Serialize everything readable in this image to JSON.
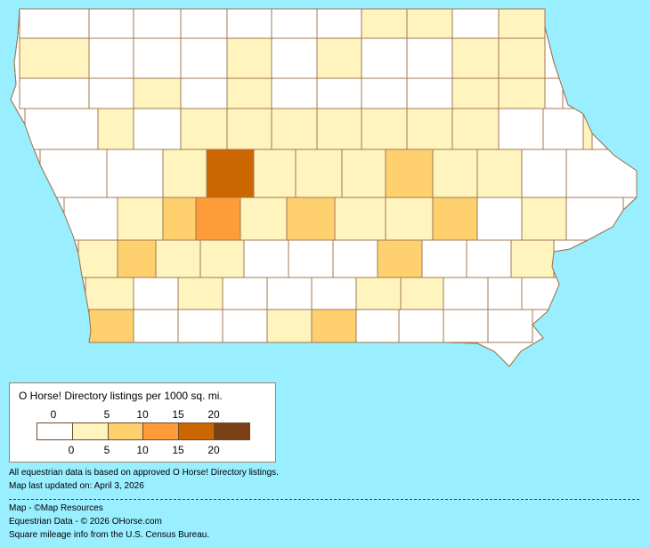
{
  "legend": {
    "title": "O Horse! Directory listings per 1000 sq. mi.",
    "top_ticks": [
      "0",
      "5",
      "10",
      "15",
      "20"
    ],
    "bottom_ticks": [
      "0",
      "5",
      "10",
      "15",
      "20"
    ],
    "colors": [
      "#FFFFFF",
      "#FFF4BE",
      "#FFD16E",
      "#FF9C3A",
      "#CC6600",
      "#7A4016"
    ]
  },
  "notes": {
    "basis": "All equestrian data is based on approved O Horse! Directory listings.",
    "updated": "Map last updated on: April 3, 2026"
  },
  "credits": {
    "map": "Map - ©Map Resources",
    "data": "Equestrian Data - © 2026 OHorse.com",
    "census": "Square mileage info from the U.S. Census Bureau."
  },
  "map": {
    "background": "#99EEFF",
    "border_color": "#A07850",
    "counties": [
      {
        "level": 0
      },
      {
        "level": 0
      },
      {
        "level": 0
      },
      {
        "level": 0
      },
      {
        "level": 0
      },
      {
        "level": 0
      },
      {
        "level": 0
      },
      {
        "level": 1
      },
      {
        "level": 1
      },
      {
        "level": 0
      },
      {
        "level": 1
      },
      {
        "level": 1
      },
      {
        "level": 0
      },
      {
        "level": 0
      },
      {
        "level": 0
      },
      {
        "level": 1
      },
      {
        "level": 0
      },
      {
        "level": 1
      },
      {
        "level": 0
      },
      {
        "level": 0
      },
      {
        "level": 1
      },
      {
        "level": 1
      },
      {
        "level": 0
      },
      {
        "level": 0
      },
      {
        "level": 1
      },
      {
        "level": 0
      },
      {
        "level": 1
      },
      {
        "level": 0
      },
      {
        "level": 0
      },
      {
        "level": 0
      },
      {
        "level": 0
      },
      {
        "level": 1
      },
      {
        "level": 1
      },
      {
        "level": 0
      },
      {
        "level": 0
      },
      {
        "level": 1
      },
      {
        "level": 0
      },
      {
        "level": 1
      },
      {
        "level": 1
      },
      {
        "level": 1
      },
      {
        "level": 1
      },
      {
        "level": 1
      },
      {
        "level": 1
      },
      {
        "level": 1
      },
      {
        "level": 0
      },
      {
        "level": 0
      },
      {
        "level": 1
      },
      {
        "level": 0
      },
      {
        "level": 0
      },
      {
        "level": 1
      },
      {
        "level": 4
      },
      {
        "level": 1
      },
      {
        "level": 1
      },
      {
        "level": 1
      },
      {
        "level": 2
      },
      {
        "level": 1
      },
      {
        "level": 1
      },
      {
        "level": 0
      },
      {
        "level": 0
      },
      {
        "level": 0
      },
      {
        "level": 1
      },
      {
        "level": 2
      },
      {
        "level": 3
      },
      {
        "level": 1
      },
      {
        "level": 2
      },
      {
        "level": 1
      },
      {
        "level": 1
      },
      {
        "level": 2
      },
      {
        "level": 0
      },
      {
        "level": 1
      },
      {
        "level": 0
      },
      {
        "level": 1
      },
      {
        "level": 2
      },
      {
        "level": 1
      },
      {
        "level": 1
      },
      {
        "level": 0
      },
      {
        "level": 0
      },
      {
        "level": 0
      },
      {
        "level": 2
      },
      {
        "level": 0
      },
      {
        "level": 0
      },
      {
        "level": 1
      },
      {
        "level": 1
      },
      {
        "level": 0
      },
      {
        "level": 1
      },
      {
        "level": 0
      },
      {
        "level": 0
      },
      {
        "level": 0
      },
      {
        "level": 1
      },
      {
        "level": 1
      },
      {
        "level": 0
      },
      {
        "level": 0
      },
      {
        "level": 0
      },
      {
        "level": 2
      },
      {
        "level": 0
      },
      {
        "level": 0
      },
      {
        "level": 0
      },
      {
        "level": 1
      },
      {
        "level": 2
      },
      {
        "level": 0
      },
      {
        "level": 0
      }
    ]
  }
}
